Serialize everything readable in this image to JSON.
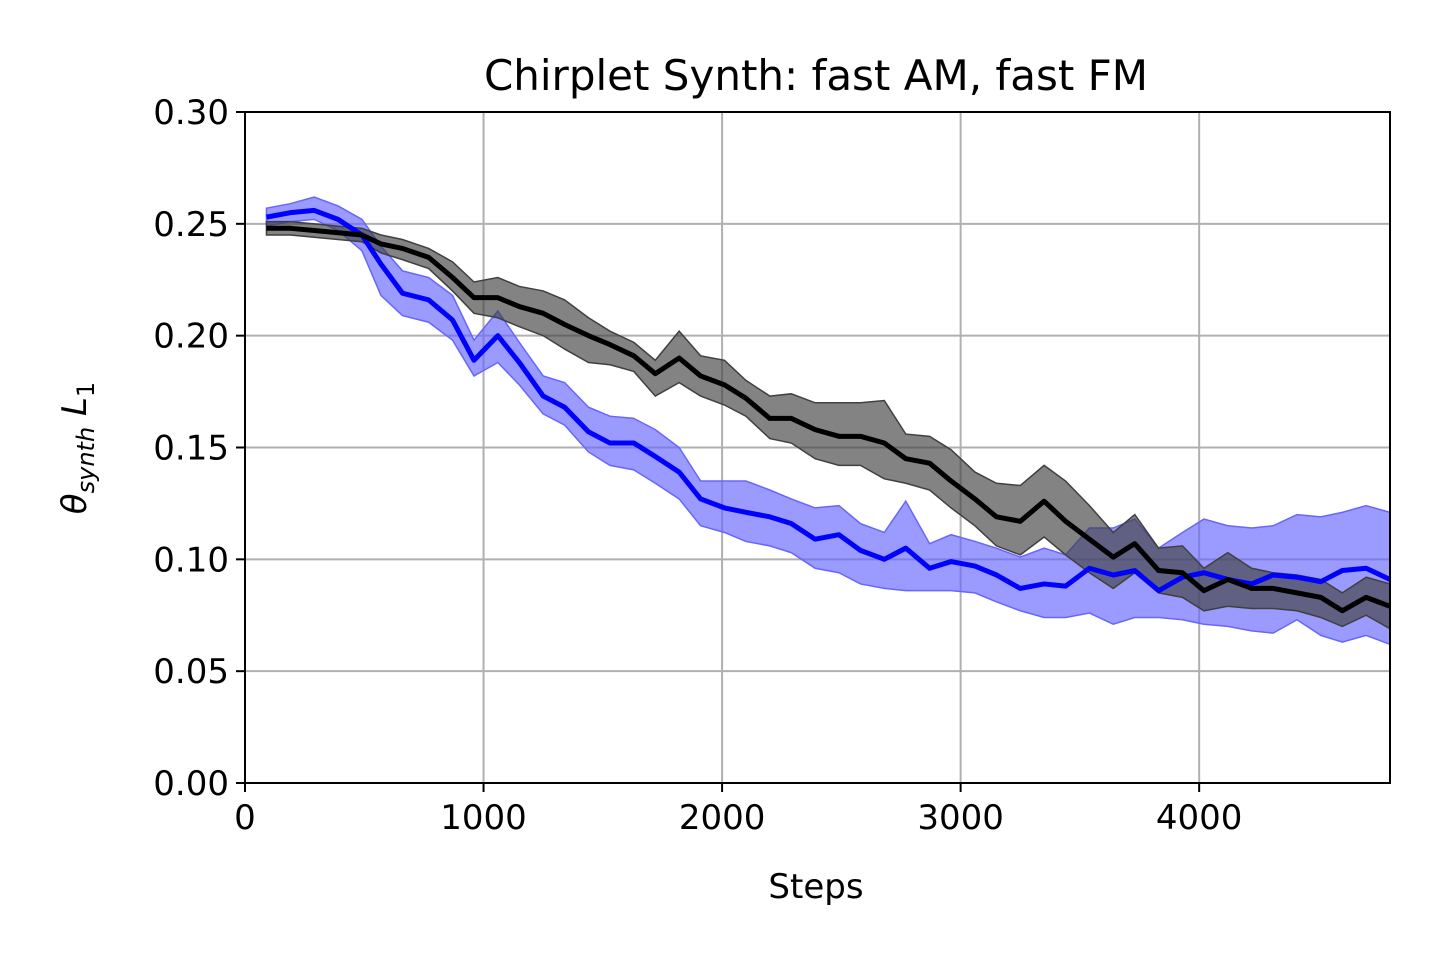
{
  "chart_data": {
    "type": "line",
    "title": "Chirplet Synth: fast AM, fast FM",
    "xlabel": "Steps",
    "ylabel_main": "θ",
    "ylabel_sub": "synth",
    "ylabel_tail": " L",
    "ylabel_tail_sub": "1",
    "xlim": [
      0,
      4800
    ],
    "ylim": [
      0.0,
      0.3
    ],
    "xticks": [
      0,
      1000,
      2000,
      3000,
      4000
    ],
    "xtick_labels": [
      "0",
      "1000",
      "2000",
      "3000",
      "4000"
    ],
    "yticks": [
      0.0,
      0.05,
      0.1,
      0.15,
      0.2,
      0.25,
      0.3
    ],
    "ytick_labels": [
      "0.00",
      "0.05",
      "0.10",
      "0.15",
      "0.20",
      "0.25",
      "0.30"
    ],
    "grid": true,
    "legend": "none",
    "x": [
      90,
      190,
      290,
      390,
      490,
      570,
      660,
      770,
      870,
      960,
      1060,
      1150,
      1250,
      1340,
      1440,
      1530,
      1630,
      1720,
      1820,
      1910,
      2010,
      2100,
      2200,
      2290,
      2390,
      2490,
      2580,
      2680,
      2770,
      2870,
      2960,
      3060,
      3150,
      3250,
      3350,
      3440,
      3540,
      3640,
      3730,
      3830,
      3930,
      4020,
      4120,
      4220,
      4310,
      4410,
      4510,
      4600,
      4700,
      4800
    ],
    "series": [
      {
        "color": "#0000ff",
        "band_color": "#6666ff",
        "mean": [
          0.253,
          0.255,
          0.256,
          0.252,
          0.245,
          0.232,
          0.219,
          0.216,
          0.207,
          0.189,
          0.2,
          0.188,
          0.173,
          0.168,
          0.157,
          0.152,
          0.152,
          0.146,
          0.139,
          0.127,
          0.123,
          0.121,
          0.119,
          0.116,
          0.109,
          0.111,
          0.104,
          0.1,
          0.105,
          0.096,
          0.099,
          0.097,
          0.093,
          0.087,
          0.089,
          0.088,
          0.096,
          0.093,
          0.095,
          0.086,
          0.092,
          0.094,
          0.091,
          0.089,
          0.093,
          0.092,
          0.09,
          0.095,
          0.096,
          0.091
        ],
        "upper": [
          0.257,
          0.259,
          0.262,
          0.258,
          0.252,
          0.24,
          0.229,
          0.226,
          0.218,
          0.198,
          0.211,
          0.197,
          0.182,
          0.179,
          0.168,
          0.164,
          0.163,
          0.158,
          0.15,
          0.135,
          0.135,
          0.135,
          0.131,
          0.127,
          0.123,
          0.124,
          0.116,
          0.112,
          0.126,
          0.107,
          0.111,
          0.108,
          0.105,
          0.101,
          0.105,
          0.102,
          0.114,
          0.114,
          0.118,
          0.105,
          0.112,
          0.118,
          0.115,
          0.114,
          0.115,
          0.12,
          0.119,
          0.121,
          0.124,
          0.121
        ],
        "lower": [
          0.249,
          0.251,
          0.252,
          0.247,
          0.238,
          0.218,
          0.209,
          0.206,
          0.198,
          0.182,
          0.188,
          0.178,
          0.165,
          0.16,
          0.148,
          0.142,
          0.14,
          0.134,
          0.127,
          0.115,
          0.112,
          0.108,
          0.106,
          0.103,
          0.096,
          0.094,
          0.089,
          0.087,
          0.086,
          0.086,
          0.086,
          0.085,
          0.081,
          0.077,
          0.074,
          0.074,
          0.076,
          0.071,
          0.074,
          0.074,
          0.073,
          0.071,
          0.07,
          0.068,
          0.067,
          0.073,
          0.066,
          0.063,
          0.066,
          0.062
        ]
      },
      {
        "color": "#000000",
        "band_color": "#404040",
        "mean": [
          0.248,
          0.248,
          0.247,
          0.246,
          0.245,
          0.241,
          0.239,
          0.235,
          0.226,
          0.217,
          0.217,
          0.213,
          0.21,
          0.205,
          0.2,
          0.196,
          0.191,
          0.183,
          0.19,
          0.182,
          0.178,
          0.172,
          0.163,
          0.163,
          0.158,
          0.155,
          0.155,
          0.152,
          0.145,
          0.143,
          0.135,
          0.127,
          0.119,
          0.117,
          0.126,
          0.117,
          0.109,
          0.101,
          0.107,
          0.095,
          0.094,
          0.086,
          0.091,
          0.087,
          0.087,
          0.085,
          0.083,
          0.077,
          0.083,
          0.079
        ],
        "upper": [
          0.251,
          0.251,
          0.25,
          0.249,
          0.248,
          0.245,
          0.243,
          0.239,
          0.233,
          0.224,
          0.226,
          0.222,
          0.22,
          0.216,
          0.208,
          0.202,
          0.197,
          0.189,
          0.202,
          0.191,
          0.189,
          0.18,
          0.173,
          0.174,
          0.17,
          0.17,
          0.17,
          0.171,
          0.156,
          0.155,
          0.149,
          0.139,
          0.134,
          0.133,
          0.142,
          0.135,
          0.124,
          0.112,
          0.12,
          0.105,
          0.106,
          0.096,
          0.103,
          0.096,
          0.094,
          0.093,
          0.091,
          0.085,
          0.092,
          0.089
        ],
        "lower": [
          0.245,
          0.245,
          0.244,
          0.243,
          0.242,
          0.237,
          0.234,
          0.23,
          0.22,
          0.21,
          0.208,
          0.204,
          0.2,
          0.194,
          0.188,
          0.187,
          0.184,
          0.173,
          0.179,
          0.173,
          0.169,
          0.164,
          0.154,
          0.152,
          0.145,
          0.142,
          0.142,
          0.136,
          0.134,
          0.131,
          0.123,
          0.115,
          0.106,
          0.102,
          0.11,
          0.102,
          0.094,
          0.087,
          0.094,
          0.085,
          0.083,
          0.077,
          0.079,
          0.078,
          0.078,
          0.077,
          0.074,
          0.07,
          0.075,
          0.069
        ]
      }
    ]
  }
}
